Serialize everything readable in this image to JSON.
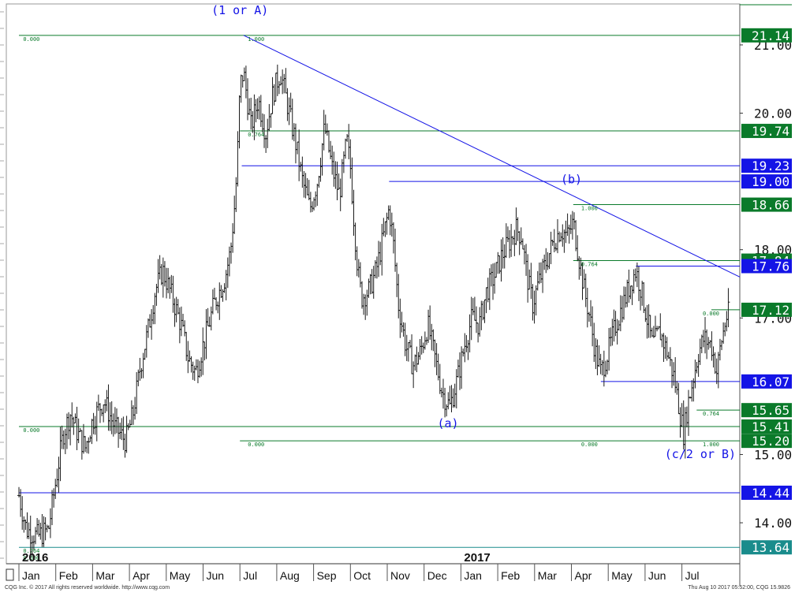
{
  "chart_data": {
    "type": "ohlc",
    "title": "",
    "xlabel": "",
    "ylabel": "",
    "ylim": [
      13.4,
      21.6
    ],
    "grid": false,
    "y_ticks": [
      "21.00",
      "20.00",
      "18.00",
      "17.00",
      "15.00",
      "14.00"
    ],
    "years": [
      {
        "label": "2016",
        "month_index": 0
      },
      {
        "label": "2017",
        "month_index": 12
      }
    ],
    "months": [
      "Jan",
      "Feb",
      "Mar",
      "Apr",
      "May",
      "Jun",
      "Jul",
      "Aug",
      "Sep",
      "Oct",
      "Nov",
      "Dec",
      "Jan",
      "Feb",
      "Mar",
      "Apr",
      "May",
      "Jun",
      "Jul"
    ],
    "price_path": [
      [
        0.0,
        14.4
      ],
      [
        0.2,
        13.9
      ],
      [
        0.5,
        13.8
      ],
      [
        0.8,
        13.9
      ],
      [
        1.0,
        14.6
      ],
      [
        1.2,
        15.3
      ],
      [
        1.4,
        15.6
      ],
      [
        1.6,
        15.3
      ],
      [
        1.8,
        15.1
      ],
      [
        2.0,
        15.5
      ],
      [
        2.3,
        15.8
      ],
      [
        2.6,
        15.4
      ],
      [
        2.9,
        15.2
      ],
      [
        3.1,
        15.6
      ],
      [
        3.3,
        16.3
      ],
      [
        3.5,
        16.8
      ],
      [
        3.7,
        17.4
      ],
      [
        3.9,
        17.7
      ],
      [
        4.1,
        17.4
      ],
      [
        4.4,
        16.9
      ],
      [
        4.6,
        16.4
      ],
      [
        4.8,
        16.2
      ],
      [
        5.0,
        16.6
      ],
      [
        5.3,
        17.2
      ],
      [
        5.6,
        17.6
      ],
      [
        5.75,
        18.0
      ],
      [
        5.88,
        18.8
      ],
      [
        5.95,
        19.6
      ],
      [
        6.0,
        20.4
      ],
      [
        6.1,
        20.6
      ],
      [
        6.3,
        19.8
      ],
      [
        6.5,
        20.2
      ],
      [
        6.7,
        19.7
      ],
      [
        6.9,
        20.3
      ],
      [
        7.1,
        20.6
      ],
      [
        7.3,
        20.1
      ],
      [
        7.5,
        19.6
      ],
      [
        7.7,
        19.0
      ],
      [
        7.9,
        18.6
      ],
      [
        8.1,
        19.0
      ],
      [
        8.3,
        19.8
      ],
      [
        8.5,
        19.2
      ],
      [
        8.7,
        18.8
      ],
      [
        8.9,
        19.6
      ],
      [
        9.0,
        19.2
      ],
      [
        9.1,
        18.4
      ],
      [
        9.2,
        17.7
      ],
      [
        9.3,
        17.3
      ],
      [
        9.5,
        17.4
      ],
      [
        9.7,
        17.7
      ],
      [
        9.9,
        18.2
      ],
      [
        10.05,
        18.6
      ],
      [
        10.15,
        18.2
      ],
      [
        10.3,
        17.2
      ],
      [
        10.5,
        16.6
      ],
      [
        10.7,
        16.3
      ],
      [
        10.9,
        16.5
      ],
      [
        11.1,
        16.9
      ],
      [
        11.3,
        16.4
      ],
      [
        11.5,
        15.9
      ],
      [
        11.7,
        15.7
      ],
      [
        11.9,
        16.1
      ],
      [
        12.1,
        16.6
      ],
      [
        12.3,
        17.0
      ],
      [
        12.5,
        16.9
      ],
      [
        12.7,
        17.4
      ],
      [
        12.9,
        17.6
      ],
      [
        13.1,
        17.9
      ],
      [
        13.3,
        18.1
      ],
      [
        13.5,
        18.3
      ],
      [
        13.65,
        18.2
      ],
      [
        13.8,
        17.6
      ],
      [
        13.95,
        17.2
      ],
      [
        14.1,
        17.5
      ],
      [
        14.3,
        17.8
      ],
      [
        14.5,
        18.1
      ],
      [
        14.7,
        18.3
      ],
      [
        14.9,
        18.2
      ],
      [
        15.05,
        18.4
      ],
      [
        15.2,
        17.9
      ],
      [
        15.35,
        17.4
      ],
      [
        15.5,
        17.0
      ],
      [
        15.65,
        16.5
      ],
      [
        15.8,
        16.2
      ],
      [
        16.0,
        16.5
      ],
      [
        16.2,
        16.9
      ],
      [
        16.4,
        17.2
      ],
      [
        16.6,
        17.5
      ],
      [
        16.75,
        17.7
      ],
      [
        16.9,
        17.4
      ],
      [
        17.05,
        17.0
      ],
      [
        17.2,
        16.6
      ],
      [
        17.4,
        16.8
      ],
      [
        17.6,
        16.5
      ],
      [
        17.8,
        16.1
      ],
      [
        17.95,
        15.6
      ],
      [
        18.05,
        15.3
      ],
      [
        18.15,
        15.7
      ],
      [
        18.3,
        16.1
      ],
      [
        18.45,
        16.5
      ],
      [
        18.6,
        16.7
      ],
      [
        18.8,
        16.6
      ],
      [
        18.95,
        16.2
      ],
      [
        19.05,
        16.6
      ],
      [
        19.2,
        17.0
      ],
      [
        19.3,
        17.1
      ]
    ],
    "price_boxes": [
      {
        "label": "21.14",
        "value": 21.14,
        "color": "#0a7a2a"
      },
      {
        "label": "19.74",
        "value": 19.74,
        "color": "#0a7a2a"
      },
      {
        "label": "19.23",
        "value": 19.23,
        "color": "#1414e6"
      },
      {
        "label": "19.00",
        "value": 19.0,
        "color": "#1414e6"
      },
      {
        "label": "18.66",
        "value": 18.66,
        "color": "#0a7a2a"
      },
      {
        "label": "17.84",
        "value": 17.84,
        "color": "#0a7a2a"
      },
      {
        "label": "17.76",
        "value": 17.76,
        "color": "#1414e6"
      },
      {
        "label": "17.12",
        "value": 17.12,
        "color": "#0a7a2a"
      },
      {
        "label": "16.07",
        "value": 16.07,
        "color": "#1414e6"
      },
      {
        "label": "15.65",
        "value": 15.65,
        "color": "#0a7a2a"
      },
      {
        "label": "15.41",
        "value": 15.41,
        "color": "#0a7a2a"
      },
      {
        "label": "15.20",
        "value": 15.2,
        "color": "#0a7a2a"
      },
      {
        "label": "14.44",
        "value": 14.44,
        "color": "#1414e6"
      },
      {
        "label": "13.64",
        "value": 13.64,
        "color": "#1a8c8c"
      }
    ],
    "horizontal_lines": [
      {
        "value": 21.14,
        "from": 0.0,
        "to": 20.0,
        "color": "#0a7a2a"
      },
      {
        "value": 19.74,
        "from": 6.0,
        "to": 20.0,
        "color": "#0a7a2a"
      },
      {
        "value": 19.23,
        "from": 6.05,
        "to": 20.0,
        "color": "#1414e6"
      },
      {
        "value": 19.0,
        "from": 10.05,
        "to": 20.0,
        "color": "#1414e6"
      },
      {
        "value": 18.66,
        "from": 15.05,
        "to": 20.0,
        "color": "#0a7a2a"
      },
      {
        "value": 17.84,
        "from": 15.05,
        "to": 20.0,
        "color": "#0a7a2a"
      },
      {
        "value": 17.76,
        "from": 16.75,
        "to": 20.0,
        "color": "#1414e6"
      },
      {
        "value": 17.12,
        "from": 18.8,
        "to": 20.0,
        "color": "#0a7a2a"
      },
      {
        "value": 16.07,
        "from": 15.8,
        "to": 20.0,
        "color": "#1414e6"
      },
      {
        "value": 15.65,
        "from": 18.4,
        "to": 20.0,
        "color": "#0a7a2a"
      },
      {
        "value": 15.41,
        "from": 0.0,
        "to": 20.0,
        "color": "#0a7a2a"
      },
      {
        "value": 15.2,
        "from": 6.0,
        "to": 20.0,
        "color": "#0a7a2a"
      },
      {
        "value": 14.44,
        "from": 0.0,
        "to": 20.0,
        "color": "#1414e6"
      },
      {
        "value": 13.64,
        "from": 0.0,
        "to": 20.0,
        "color": "#1a8c8c"
      }
    ],
    "trendline": {
      "from": [
        6.1,
        21.14
      ],
      "to": [
        20.0,
        17.6
      ],
      "color": "#1414e6"
    },
    "fib_labels": [
      {
        "text": "0.000",
        "x": 0.05,
        "y": 21.14
      },
      {
        "text": "1.000",
        "x": 6.15,
        "y": 21.14
      },
      {
        "text": "0.764",
        "x": 6.15,
        "y": 19.74
      },
      {
        "text": "1.000",
        "x": 15.2,
        "y": 18.66
      },
      {
        "text": "0.764",
        "x": 15.2,
        "y": 17.84
      },
      {
        "text": "0.000",
        "x": 0.05,
        "y": 15.41
      },
      {
        "text": "0.764",
        "x": 0.05,
        "y": 13.64
      },
      {
        "text": "0.000",
        "x": 0.05,
        "y": 13.54
      },
      {
        "text": "0.000",
        "x": 6.15,
        "y": 15.2
      },
      {
        "text": "0.000",
        "x": 15.2,
        "y": 15.2
      },
      {
        "text": "1.000",
        "x": 18.5,
        "y": 15.2
      },
      {
        "text": "0.764",
        "x": 18.5,
        "y": 15.65
      },
      {
        "text": "0.000",
        "x": 18.5,
        "y": 17.12
      }
    ],
    "wave_labels": [
      {
        "text": "(1 or A)",
        "x": 6.0,
        "y": 21.45
      },
      {
        "text": "(b)",
        "x": 15.0,
        "y": 18.97
      },
      {
        "text": "(a)",
        "x": 11.65,
        "y": 15.4
      },
      {
        "text": "(c/2 or B)",
        "x": 18.5,
        "y": 14.95
      }
    ]
  },
  "footer": {
    "left": "CQG Inc. © 2017 All rights reserved worldwide. http://www.cqg.com",
    "right": "Thu Aug 10 2017 05:52:00, CQG 15.9826"
  }
}
